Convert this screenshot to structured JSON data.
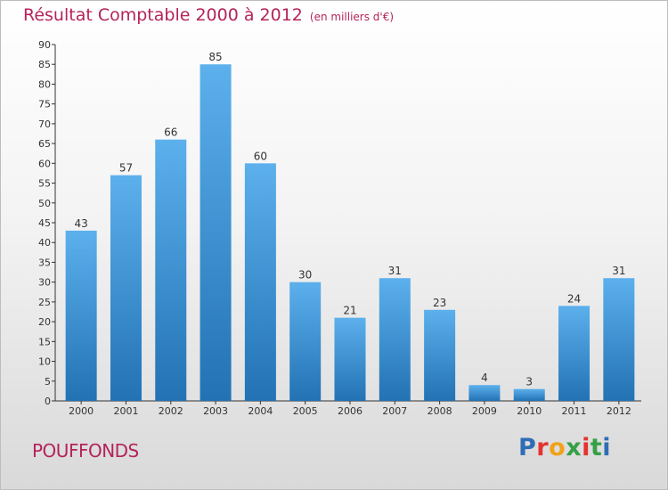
{
  "header": {
    "title": "Résultat Comptable 2000 à 2012",
    "unit": "(en milliers d'€)"
  },
  "footer": {
    "city": "POUFFONDS",
    "logo": "Proxiti",
    "logo_colors": [
      "#2f6db5",
      "#e3342f",
      "#f1a21a",
      "#36a046",
      "#e3342f",
      "#36a046",
      "#2f6db5"
    ]
  },
  "colors": {
    "title": "#b4235a",
    "bar_top": "#5cb0ec",
    "bar_bottom": "#2272b4",
    "axis": "#333333"
  },
  "chart_data": {
    "type": "bar",
    "title": "Résultat Comptable 2000 à 2012",
    "subtitle": "(en milliers d'€)",
    "categories": [
      "2000",
      "2001",
      "2002",
      "2003",
      "2004",
      "2005",
      "2006",
      "2007",
      "2008",
      "2009",
      "2010",
      "2011",
      "2012"
    ],
    "values": [
      43,
      57,
      66,
      85,
      60,
      30,
      21,
      31,
      23,
      4,
      3,
      24,
      31
    ],
    "ylim": [
      0,
      90
    ],
    "yticks": [
      0,
      5,
      10,
      15,
      20,
      25,
      30,
      35,
      40,
      45,
      50,
      55,
      60,
      65,
      70,
      75,
      80,
      85,
      90
    ],
    "grid": false,
    "data_labels": true
  }
}
